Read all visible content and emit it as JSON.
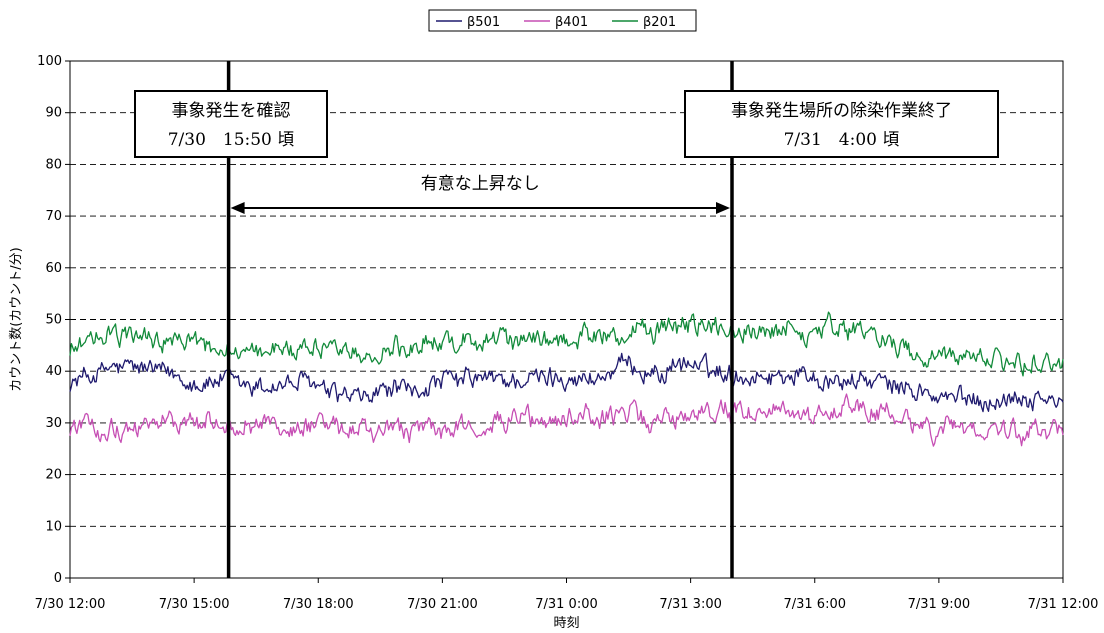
{
  "chart_data": {
    "type": "line",
    "title": "",
    "xlabel": "時刻",
    "ylabel": "カウント数(カウント/分)",
    "ylim": [
      0,
      100
    ],
    "yticks": [
      0,
      10,
      20,
      30,
      40,
      50,
      60,
      70,
      80,
      90,
      100
    ],
    "xlim": [
      "7/30 12:00",
      "7/31 12:00"
    ],
    "xticks": [
      "7/30 12:00",
      "7/30 15:00",
      "7/30 18:00",
      "7/30 21:00",
      "7/31 0:00",
      "7/31 3:00",
      "7/31 6:00",
      "7/31 9:00",
      "7/31 12:00"
    ],
    "grid": "horizontal-dashed",
    "legend": "top-center",
    "series": [
      {
        "name": "β501",
        "color": "#1f1a6e",
        "keypoints": [
          [
            "7/30 12:00",
            38
          ],
          [
            "7/30 13:00",
            40
          ],
          [
            "7/30 14:00",
            40
          ],
          [
            "7/30 15:00",
            39
          ],
          [
            "7/30 15:50",
            38
          ],
          [
            "7/30 17:00",
            38
          ],
          [
            "7/30 18:00",
            37
          ],
          [
            "7/30 19:00",
            36
          ],
          [
            "7/30 20:00",
            37
          ],
          [
            "7/30 21:00",
            37
          ],
          [
            "7/30 22:00",
            38
          ],
          [
            "7/30 23:00",
            38
          ],
          [
            "7/31 0:00",
            38
          ],
          [
            "7/31 1:00",
            39
          ],
          [
            "7/31 2:00",
            40
          ],
          [
            "7/31 3:00",
            41
          ],
          [
            "7/31 4:00",
            40
          ],
          [
            "7/31 5:00",
            40
          ],
          [
            "7/31 6:00",
            40
          ],
          [
            "7/31 7:00",
            39
          ],
          [
            "7/31 8:00",
            37
          ],
          [
            "7/31 9:00",
            35
          ],
          [
            "7/31 10:00",
            35
          ],
          [
            "7/31 11:00",
            35
          ],
          [
            "7/31 12:00",
            33
          ]
        ]
      },
      {
        "name": "β401",
        "color": "#c64fb4",
        "keypoints": [
          [
            "7/30 12:00",
            29
          ],
          [
            "7/30 13:00",
            30
          ],
          [
            "7/30 14:00",
            31
          ],
          [
            "7/30 15:00",
            30
          ],
          [
            "7/30 15:50",
            30
          ],
          [
            "7/30 17:00",
            29
          ],
          [
            "7/30 18:00",
            29
          ],
          [
            "7/30 19:00",
            28
          ],
          [
            "7/30 20:00",
            28
          ],
          [
            "7/30 21:00",
            29
          ],
          [
            "7/30 22:00",
            29
          ],
          [
            "7/30 23:00",
            30
          ],
          [
            "7/31 0:00",
            30
          ],
          [
            "7/31 1:00",
            31
          ],
          [
            "7/31 2:00",
            31
          ],
          [
            "7/31 3:00",
            31
          ],
          [
            "7/31 4:00",
            32
          ],
          [
            "7/31 5:00",
            33
          ],
          [
            "7/31 6:00",
            32
          ],
          [
            "7/31 7:00",
            32
          ],
          [
            "7/31 8:00",
            31
          ],
          [
            "7/31 9:00",
            29
          ],
          [
            "7/31 10:00",
            29
          ],
          [
            "7/31 11:00",
            28
          ],
          [
            "7/31 12:00",
            29
          ]
        ]
      },
      {
        "name": "β201",
        "color": "#128a3a",
        "keypoints": [
          [
            "7/30 12:00",
            44
          ],
          [
            "7/30 13:00",
            46
          ],
          [
            "7/30 14:00",
            46
          ],
          [
            "7/30 15:00",
            45
          ],
          [
            "7/30 15:50",
            44
          ],
          [
            "7/30 17:00",
            45
          ],
          [
            "7/30 18:00",
            45
          ],
          [
            "7/30 19:00",
            44
          ],
          [
            "7/30 20:00",
            45
          ],
          [
            "7/30 21:00",
            45
          ],
          [
            "7/30 22:00",
            45
          ],
          [
            "7/30 23:00",
            45
          ],
          [
            "7/31 0:00",
            46
          ],
          [
            "7/31 1:00",
            47
          ],
          [
            "7/31 2:00",
            48
          ],
          [
            "7/31 3:00",
            48
          ],
          [
            "7/31 4:00",
            48
          ],
          [
            "7/31 5:00",
            48
          ],
          [
            "7/31 6:00",
            48
          ],
          [
            "7/31 7:00",
            47
          ],
          [
            "7/31 8:00",
            44
          ],
          [
            "7/31 9:00",
            43
          ],
          [
            "7/31 10:00",
            43
          ],
          [
            "7/31 11:00",
            42
          ],
          [
            "7/31 12:00",
            42
          ]
        ]
      }
    ],
    "event_lines": [
      {
        "time": "7/30 15:50",
        "label_lines": [
          "事象発生を確認",
          "7/30　15:50 頃"
        ]
      },
      {
        "time": "7/31 4:00",
        "label_lines": [
          "事象発生場所の除染作業終了",
          "7/31　4:00 頃"
        ]
      }
    ],
    "span_annotation": {
      "from": "7/30 15:50",
      "to": "7/31 4:00",
      "text": "有意な上昇なし",
      "y": 71
    }
  }
}
